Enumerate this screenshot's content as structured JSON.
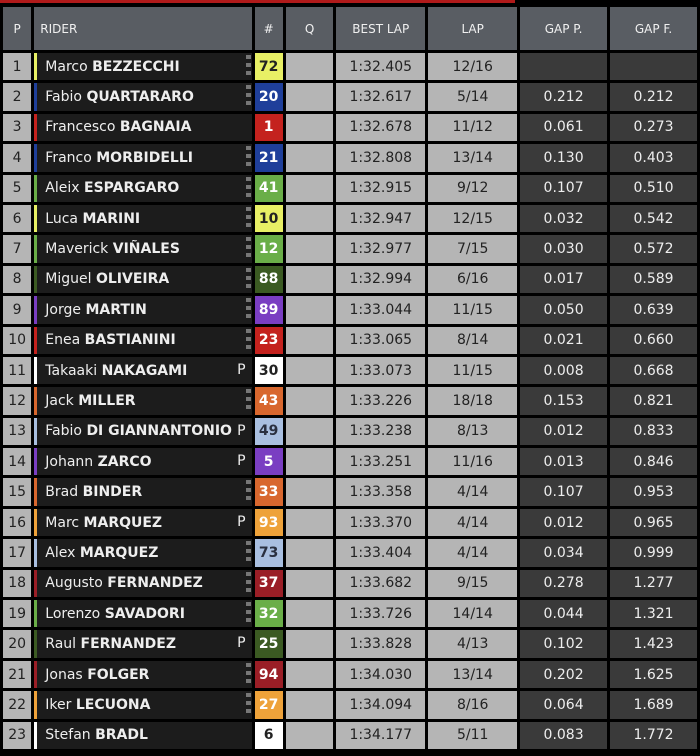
{
  "headers": {
    "p": "P",
    "rider": "RIDER",
    "num": "#",
    "q": "Q",
    "best": "BEST LAP",
    "lap": "LAP",
    "gapp": "GAP P.",
    "gapf": "GAP F."
  },
  "rows": [
    {
      "p": "1",
      "first": "Marco",
      "last": "BEZZECCHI",
      "pit": "",
      "checker": true,
      "num": "72",
      "color": "#e8f065",
      "text": "#222",
      "best": "1:32.405",
      "lap": "12/16",
      "gapp": "",
      "gapf": ""
    },
    {
      "p": "2",
      "first": "Fabio",
      "last": "QUARTARARO",
      "pit": "",
      "checker": true,
      "num": "20",
      "color": "#1f3f9a",
      "text": "#fff",
      "best": "1:32.617",
      "lap": "5/14",
      "gapp": "0.212",
      "gapf": "0.212"
    },
    {
      "p": "3",
      "first": "Francesco",
      "last": "BAGNAIA",
      "pit": "",
      "checker": false,
      "num": "1",
      "color": "#c4221e",
      "text": "#fff",
      "best": "1:32.678",
      "lap": "11/12",
      "gapp": "0.061",
      "gapf": "0.273"
    },
    {
      "p": "4",
      "first": "Franco",
      "last": "MORBIDELLI",
      "pit": "",
      "checker": true,
      "num": "21",
      "color": "#1f3f9a",
      "text": "#fff",
      "best": "1:32.808",
      "lap": "13/14",
      "gapp": "0.130",
      "gapf": "0.403"
    },
    {
      "p": "5",
      "first": "Aleix",
      "last": "ESPARGARO",
      "pit": "",
      "checker": true,
      "num": "41",
      "color": "#6aae48",
      "text": "#fff",
      "best": "1:32.915",
      "lap": "9/12",
      "gapp": "0.107",
      "gapf": "0.510"
    },
    {
      "p": "6",
      "first": "Luca",
      "last": "MARINI",
      "pit": "",
      "checker": true,
      "num": "10",
      "color": "#e8f065",
      "text": "#222",
      "best": "1:32.947",
      "lap": "12/15",
      "gapp": "0.032",
      "gapf": "0.542"
    },
    {
      "p": "7",
      "first": "Maverick",
      "last": "VIÑALES",
      "pit": "",
      "checker": true,
      "num": "12",
      "color": "#6aae48",
      "text": "#fff",
      "best": "1:32.977",
      "lap": "7/15",
      "gapp": "0.030",
      "gapf": "0.572"
    },
    {
      "p": "8",
      "first": "Miguel",
      "last": "OLIVEIRA",
      "pit": "",
      "checker": true,
      "num": "88",
      "color": "#3b5a22",
      "text": "#fff",
      "best": "1:32.994",
      "lap": "6/16",
      "gapp": "0.017",
      "gapf": "0.589"
    },
    {
      "p": "9",
      "first": "Jorge",
      "last": "MARTIN",
      "pit": "",
      "checker": true,
      "num": "89",
      "color": "#7a3ec2",
      "text": "#fff",
      "best": "1:33.044",
      "lap": "11/15",
      "gapp": "0.050",
      "gapf": "0.639"
    },
    {
      "p": "10",
      "first": "Enea",
      "last": "BASTIANINI",
      "pit": "",
      "checker": true,
      "num": "23",
      "color": "#c4221e",
      "text": "#fff",
      "best": "1:33.065",
      "lap": "8/14",
      "gapp": "0.021",
      "gapf": "0.660"
    },
    {
      "p": "11",
      "first": "Takaaki",
      "last": "NAKAGAMI",
      "pit": "P",
      "checker": false,
      "num": "30",
      "color": "#ffffff",
      "text": "#222",
      "best": "1:33.073",
      "lap": "11/15",
      "gapp": "0.008",
      "gapf": "0.668"
    },
    {
      "p": "12",
      "first": "Jack",
      "last": "MILLER",
      "pit": "",
      "checker": true,
      "num": "43",
      "color": "#d8672e",
      "text": "#fff",
      "best": "1:33.226",
      "lap": "18/18",
      "gapp": "0.153",
      "gapf": "0.821"
    },
    {
      "p": "13",
      "first": "Fabio",
      "last": "DI GIANNANTONIO",
      "pit": "P",
      "checker": false,
      "num": "49",
      "color": "#a9bfe0",
      "text": "#2a3040",
      "best": "1:33.238",
      "lap": "8/13",
      "gapp": "0.012",
      "gapf": "0.833"
    },
    {
      "p": "14",
      "first": "Johann",
      "last": "ZARCO",
      "pit": "P",
      "checker": false,
      "num": "5",
      "color": "#7a3ec2",
      "text": "#fff",
      "best": "1:33.251",
      "lap": "11/16",
      "gapp": "0.013",
      "gapf": "0.846"
    },
    {
      "p": "15",
      "first": "Brad",
      "last": "BINDER",
      "pit": "",
      "checker": true,
      "num": "33",
      "color": "#d8672e",
      "text": "#fff",
      "best": "1:33.358",
      "lap": "4/14",
      "gapp": "0.107",
      "gapf": "0.953"
    },
    {
      "p": "16",
      "first": "Marc",
      "last": "MARQUEZ",
      "pit": "P",
      "checker": false,
      "num": "93",
      "color": "#eea23a",
      "text": "#fff",
      "best": "1:33.370",
      "lap": "4/14",
      "gapp": "0.012",
      "gapf": "0.965"
    },
    {
      "p": "17",
      "first": "Alex",
      "last": "MARQUEZ",
      "pit": "",
      "checker": true,
      "num": "73",
      "color": "#a9bfe0",
      "text": "#2a3040",
      "best": "1:33.404",
      "lap": "4/14",
      "gapp": "0.034",
      "gapf": "0.999"
    },
    {
      "p": "18",
      "first": "Augusto",
      "last": "FERNANDEZ",
      "pit": "",
      "checker": true,
      "num": "37",
      "color": "#9a1e26",
      "text": "#fff",
      "best": "1:33.682",
      "lap": "9/15",
      "gapp": "0.278",
      "gapf": "1.277"
    },
    {
      "p": "19",
      "first": "Lorenzo",
      "last": "SAVADORI",
      "pit": "",
      "checker": true,
      "num": "32",
      "color": "#6aae48",
      "text": "#fff",
      "best": "1:33.726",
      "lap": "14/14",
      "gapp": "0.044",
      "gapf": "1.321"
    },
    {
      "p": "20",
      "first": "Raul",
      "last": "FERNANDEZ",
      "pit": "P",
      "checker": false,
      "num": "25",
      "color": "#3b5a22",
      "text": "#fff",
      "best": "1:33.828",
      "lap": "4/13",
      "gapp": "0.102",
      "gapf": "1.423"
    },
    {
      "p": "21",
      "first": "Jonas",
      "last": "FOLGER",
      "pit": "",
      "checker": true,
      "num": "94",
      "color": "#9a1e26",
      "text": "#fff",
      "best": "1:34.030",
      "lap": "13/14",
      "gapp": "0.202",
      "gapf": "1.625"
    },
    {
      "p": "22",
      "first": "Iker",
      "last": "LECUONA",
      "pit": "",
      "checker": true,
      "num": "27",
      "color": "#eea23a",
      "text": "#fff",
      "best": "1:34.094",
      "lap": "8/16",
      "gapp": "0.064",
      "gapf": "1.689"
    },
    {
      "p": "23",
      "first": "Stefan",
      "last": "BRADL",
      "pit": "",
      "checker": false,
      "num": "6",
      "color": "#ffffff",
      "text": "#222",
      "best": "1:34.177",
      "lap": "5/11",
      "gapp": "0.083",
      "gapf": "1.772"
    }
  ]
}
